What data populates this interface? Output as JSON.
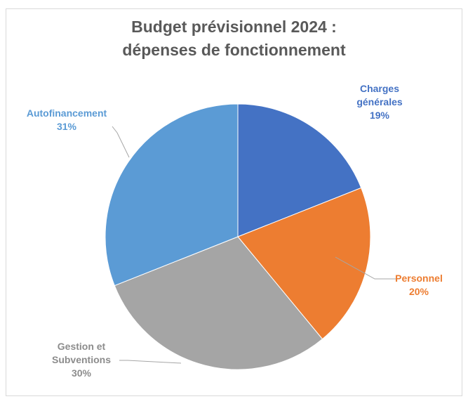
{
  "chart_data": {
    "type": "pie",
    "title": "Budget prévisionnel 2024 :",
    "subtitle": "dépenses de fonctionnement",
    "slices": [
      {
        "label_lines": [
          "Charges",
          "générales"
        ],
        "percent_label": "19%",
        "value": 19,
        "color": "#4472c4"
      },
      {
        "label_lines": [
          "Personnel"
        ],
        "percent_label": "20%",
        "value": 20,
        "color": "#ed7d31"
      },
      {
        "label_lines": [
          "Gestion et",
          "Subventions"
        ],
        "percent_label": "30%",
        "value": 30,
        "color": "#a5a5a5"
      },
      {
        "label_lines": [
          "Autofinancement"
        ],
        "percent_label": "31%",
        "value": 31,
        "color": "#5b9bd5"
      }
    ],
    "legend": "none",
    "start_angle": "12 o'clock",
    "direction": "clockwise"
  }
}
